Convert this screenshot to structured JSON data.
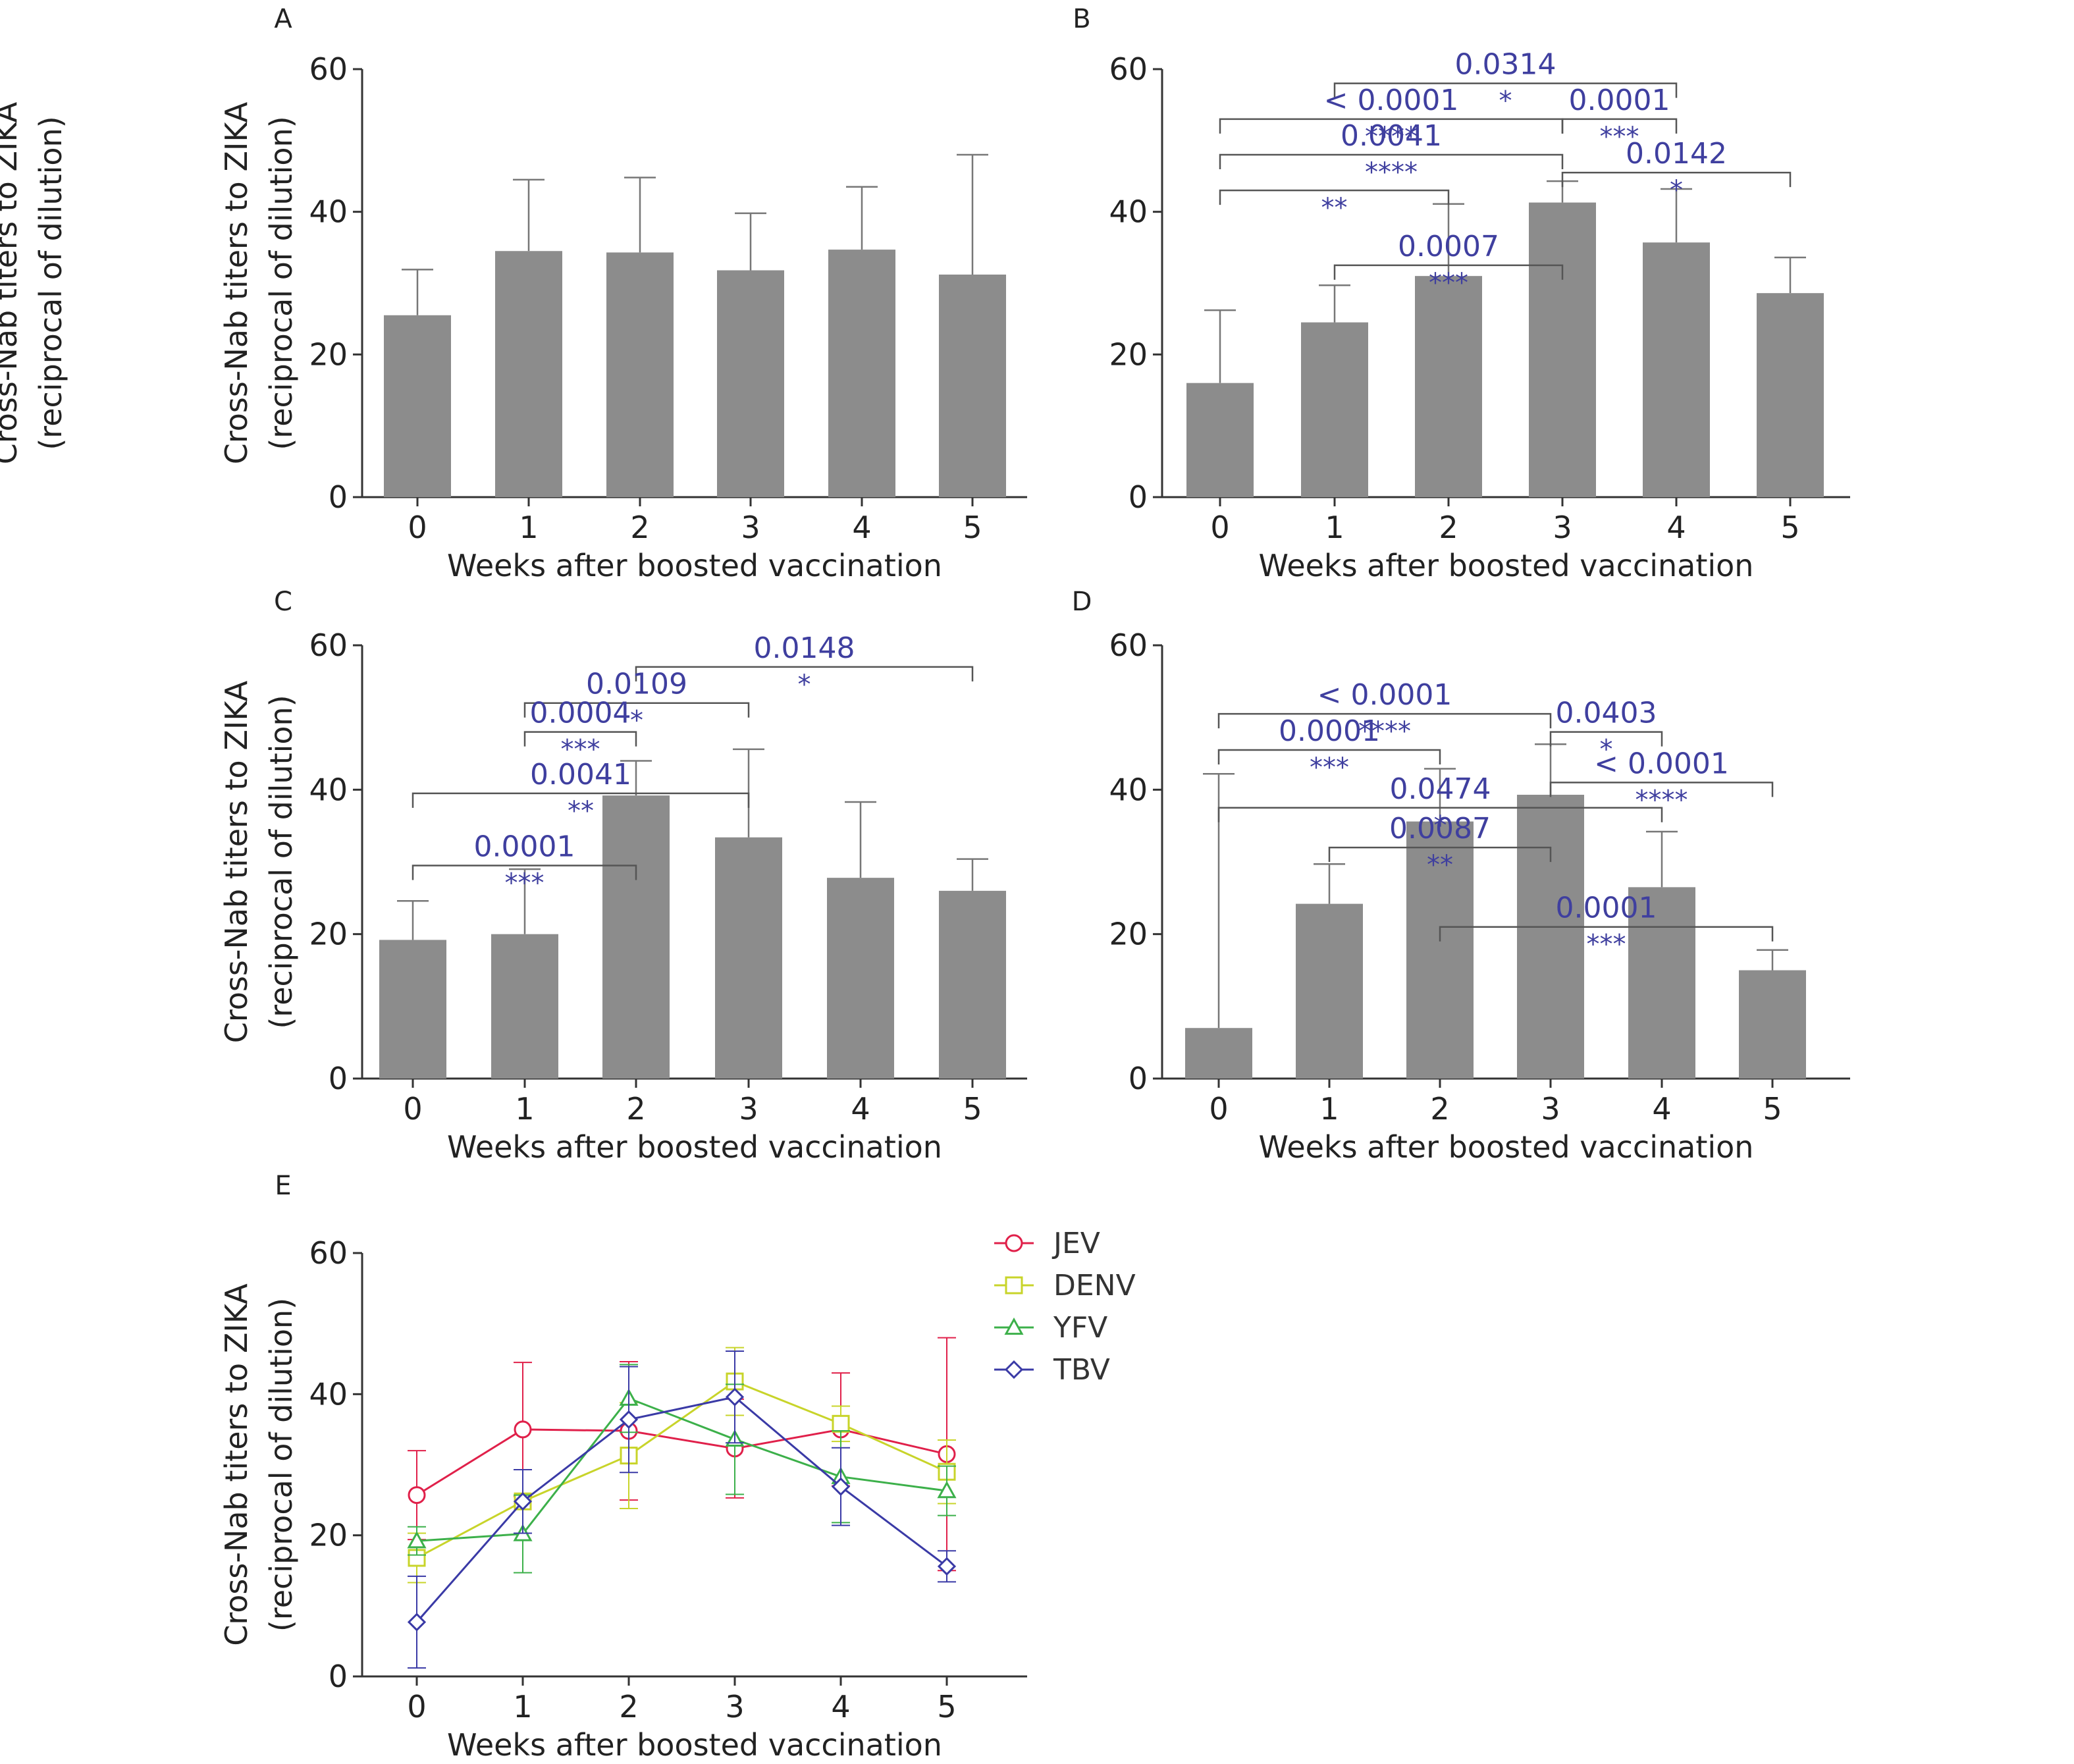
{
  "chart_data": [
    {
      "panel": "A",
      "type": "bar",
      "categories": [
        "0",
        "1",
        "2",
        "3",
        "4",
        "5"
      ],
      "values": [
        25.5,
        34.5,
        34.3,
        31.8,
        34.7,
        31.2
      ],
      "errors": [
        6.4,
        10.0,
        10.5,
        8.0,
        8.8,
        16.8
      ],
      "xlabel": "Weeks after boosted vaccination",
      "ylabel": [
        "Cross-Nab titers to ZIKA",
        "(reciprocal of dilution)"
      ],
      "yticks": [
        "0",
        "20",
        "40",
        "60"
      ],
      "ylim": [
        0,
        60
      ],
      "bar_color": "#8c8c8c",
      "sig": []
    },
    {
      "panel": "B",
      "type": "bar",
      "categories": [
        "0",
        "1",
        "2",
        "3",
        "4",
        "5"
      ],
      "values": [
        16.0,
        24.5,
        31.0,
        41.3,
        35.7,
        28.6
      ],
      "errors": [
        10.2,
        5.2,
        10.1,
        3.0,
        7.5,
        5.0
      ],
      "xlabel": "Weeks after boosted vaccination",
      "ylabel": [
        "Cross-Nab titers to ZIKA",
        "(reciprocal of dilution)"
      ],
      "yticks": [
        "0",
        "20",
        "40",
        "60"
      ],
      "ylim": [
        0,
        60
      ],
      "bar_color": "#8c8c8c",
      "sig": [
        {
          "from": 1,
          "to": 4,
          "y": 58.0,
          "p": "0.0314",
          "stars": "*"
        },
        {
          "from": 3,
          "to": 4,
          "y": 53.0,
          "p": "0.0001",
          "stars": "***"
        },
        {
          "from": 0,
          "to": 3,
          "y": 53.0,
          "p": "< 0.0001",
          "stars": "****"
        },
        {
          "from": 0,
          "to": 3,
          "y": 48.0,
          "p": "0.0041",
          "stars": "****"
        },
        {
          "from": 3,
          "to": 5,
          "y": 45.5,
          "p": "0.0142",
          "stars": "*"
        },
        {
          "from": 0,
          "to": 2,
          "y": 43.0,
          "p": "",
          "stars": "**"
        },
        {
          "from": 1,
          "to": 3,
          "y": 32.5,
          "p": "0.0007",
          "stars": "***"
        }
      ]
    },
    {
      "panel": "C",
      "type": "bar",
      "categories": [
        "0",
        "1",
        "2",
        "3",
        "4",
        "5"
      ],
      "values": [
        19.2,
        20.0,
        39.2,
        33.4,
        27.8,
        26.0
      ],
      "errors": [
        5.4,
        9.0,
        4.8,
        12.2,
        10.5,
        4.4
      ],
      "xlabel": "Weeks after boosted vaccination",
      "ylabel": [
        "Cross-Nab titers to ZIKA",
        "(reciprocal of dilution)"
      ],
      "yticks": [
        "0",
        "20",
        "40",
        "60"
      ],
      "ylim": [
        0,
        60
      ],
      "bar_color": "#8c8c8c",
      "sig": [
        {
          "from": 2,
          "to": 5,
          "y": 57.0,
          "p": "0.0148",
          "stars": "*"
        },
        {
          "from": 1,
          "to": 3,
          "y": 52.0,
          "p": "0.0109",
          "stars": "*"
        },
        {
          "from": 1,
          "to": 2,
          "y": 48.0,
          "p": "0.0004",
          "stars": "***"
        },
        {
          "from": 0,
          "to": 3,
          "y": 39.5,
          "p": "0.0041",
          "stars": "**"
        },
        {
          "from": 0,
          "to": 2,
          "y": 29.5,
          "p": "0.0001",
          "stars": "***"
        }
      ]
    },
    {
      "panel": "D",
      "type": "bar",
      "categories": [
        "0",
        "1",
        "2",
        "3",
        "4",
        "5"
      ],
      "values": [
        7.0,
        24.2,
        35.6,
        39.3,
        26.5,
        15.0
      ],
      "errors": [
        35.2,
        5.5,
        7.3,
        7.0,
        7.7,
        2.8
      ],
      "xlabel": "Weeks after boosted vaccination",
      "ylabel": [],
      "yticks": [
        "0",
        "20",
        "40",
        "60"
      ],
      "ylim": [
        0,
        60
      ],
      "bar_color": "#8c8c8c",
      "sig": [
        {
          "from": 0,
          "to": 3,
          "y": 50.5,
          "p": "< 0.0001",
          "stars": "****"
        },
        {
          "from": 3,
          "to": 4,
          "y": 48.0,
          "p": "0.0403",
          "stars": "*"
        },
        {
          "from": 0,
          "to": 2,
          "y": 45.5,
          "p": "0.0001",
          "stars": "***"
        },
        {
          "from": 3,
          "to": 5,
          "y": 41.0,
          "p": "< 0.0001",
          "stars": "****"
        },
        {
          "from": 0,
          "to": 4,
          "y": 37.5,
          "p": "0.0474",
          "stars": "*"
        },
        {
          "from": 1,
          "to": 3,
          "y": 32.0,
          "p": "0.0087",
          "stars": "**"
        },
        {
          "from": 2,
          "to": 5,
          "y": 21.0,
          "p": "0.0001",
          "stars": "***"
        }
      ]
    },
    {
      "panel": "E",
      "type": "line",
      "x": [
        "0",
        "1",
        "2",
        "3",
        "4",
        "5"
      ],
      "xlabel": "Weeks after boosted vaccination",
      "ylabel": [
        "Cross-Nab titers to ZIKA",
        "(reciprocal of dilution)"
      ],
      "yticks": [
        "0",
        "20",
        "40",
        "60"
      ],
      "ylim": [
        0,
        60
      ],
      "legend": "top-right",
      "series": [
        {
          "name": "JEV",
          "color": "#e0204a",
          "marker": "circle",
          "values": [
            25.7,
            35.0,
            34.8,
            32.3,
            35.0,
            31.5
          ],
          "errors": [
            6.3,
            9.5,
            9.8,
            7.0,
            8.0,
            16.5
          ]
        },
        {
          "name": "DENV",
          "color": "#c8d42a",
          "marker": "square",
          "values": [
            16.8,
            24.8,
            31.3,
            41.8,
            35.8,
            29.0
          ],
          "errors": [
            3.5,
            4.5,
            7.5,
            4.8,
            2.5,
            4.5
          ]
        },
        {
          "name": "YFV",
          "color": "#3cb04a",
          "marker": "triangle",
          "values": [
            19.2,
            20.2,
            39.4,
            33.6,
            28.3,
            26.3
          ],
          "errors": [
            2.0,
            5.5,
            4.8,
            7.8,
            6.5,
            3.5
          ]
        },
        {
          "name": "TBV",
          "color": "#3a3aa6",
          "marker": "diamond",
          "values": [
            7.7,
            24.8,
            36.4,
            39.6,
            26.9,
            15.6
          ],
          "errors": [
            6.5,
            4.5,
            7.5,
            6.5,
            5.5,
            2.2
          ]
        }
      ]
    }
  ]
}
